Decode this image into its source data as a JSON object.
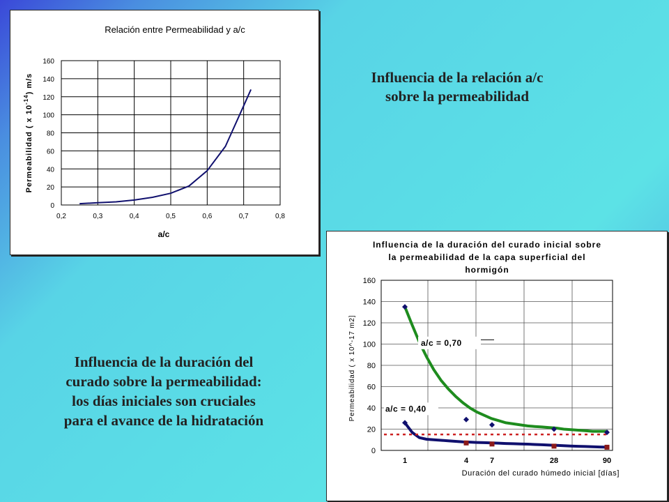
{
  "captions": {
    "top": [
      "Influencia de la relación a/c",
      "sobre la permeabilidad"
    ],
    "bottom": [
      "Influencia de la duración del",
      "curado sobre la permeabilidad:",
      "los días iniciales son cruciales",
      "para el avance de la hidratación"
    ]
  },
  "colors": {
    "background_start": "#3a48d8",
    "background_mid": "#5ce2e6",
    "series_navy": "#10106e",
    "series_green": "#1e8c1e",
    "series_red_dotted": "#cc2222"
  },
  "chart_data": [
    {
      "type": "line",
      "title": "Relación entre Permeabilidad y a/c",
      "xlabel": "a/c",
      "ylabel": "Permeabilidad ( x 10^-14) m/s",
      "ylabel_parts": {
        "pre": "Permeabilidad ( x 10",
        "sup": "-14",
        "post": ") m/s"
      },
      "xlim": [
        0.2,
        0.8
      ],
      "ylim": [
        0,
        160
      ],
      "x_ticks": [
        0.2,
        0.3,
        0.4,
        0.5,
        0.6,
        0.7,
        0.8
      ],
      "x_tick_labels": [
        "0,2",
        "0,3",
        "0,4",
        "0,5",
        "0,6",
        "0,7",
        "0,8"
      ],
      "y_ticks": [
        0,
        20,
        40,
        60,
        80,
        100,
        120,
        140,
        160
      ],
      "y_tick_labels": [
        "0",
        "20",
        "40",
        "60",
        "80",
        "100",
        "120",
        "140",
        "160"
      ],
      "grid": true,
      "series": [
        {
          "x": [
            0.25,
            0.3,
            0.35,
            0.4,
            0.45,
            0.5,
            0.55,
            0.6,
            0.65,
            0.7,
            0.72
          ],
          "y": [
            1.5,
            2.5,
            3.5,
            5.5,
            8.5,
            13,
            21,
            38,
            65,
            110,
            128
          ]
        }
      ]
    },
    {
      "type": "line",
      "title": "Influencia de la duración del curado inicial sobre la permeabilidad de la capa superficial del hormigón",
      "title_lines": [
        "Influencia de la duración del curado inicial sobre",
        "la permeabilidad de la capa superficial del",
        "hormigón"
      ],
      "xlabel": "Duración del curado húmedo inicial [días]",
      "ylabel": "Permeabilidad ( x 10^-17 m2]",
      "ylim": [
        0,
        160
      ],
      "y_ticks": [
        0,
        20,
        40,
        60,
        80,
        100,
        120,
        140,
        160
      ],
      "y_tick_labels": [
        "0",
        "20",
        "40",
        "60",
        "80",
        "100",
        "120",
        "140",
        "160"
      ],
      "x_ticks": [
        1,
        4,
        7,
        28,
        90
      ],
      "x_tick_labels": [
        "1",
        "4",
        "7",
        "28",
        "90"
      ],
      "x_scale": "ordinal (1, 4, 7, 28, 90)",
      "grid": true,
      "annotations": [
        "a/c = 0,70",
        "a/c = 0,40"
      ],
      "series": [
        {
          "x": [
            1,
            4,
            7,
            28,
            90
          ],
          "y": [
            135,
            29,
            24,
            20,
            17
          ],
          "curve_y": [
            135,
            118,
            102,
            88,
            76,
            66,
            58,
            51,
            45,
            40,
            36,
            33,
            30,
            28,
            26,
            25,
            24,
            23,
            22.5,
            22,
            21.5,
            21,
            20,
            19.5,
            19,
            18.5,
            18,
            18,
            18
          ],
          "color": "#1e8c1e",
          "marker_color": "#10106e"
        },
        {
          "x": [
            1,
            4,
            7,
            28,
            90
          ],
          "y": [
            26,
            7,
            6,
            4,
            3
          ],
          "curve_y": [
            26,
            17,
            12,
            10.5,
            10,
            9.5,
            9,
            8.5,
            8,
            7.8,
            7.5,
            7.3,
            7.0,
            6.8,
            6.5,
            6.3,
            6.1,
            5.9,
            5.6,
            5.3,
            5.0,
            4.7,
            4.4,
            4.1,
            3.9,
            3.7,
            3.5,
            3.2,
            3
          ],
          "color": "#10106e",
          "marker_color": "#8b1a1a"
        },
        {
          "x": [
            1,
            90
          ],
          "y": [
            15,
            15
          ],
          "style": "dotted",
          "color": "#cc2222"
        }
      ]
    }
  ]
}
